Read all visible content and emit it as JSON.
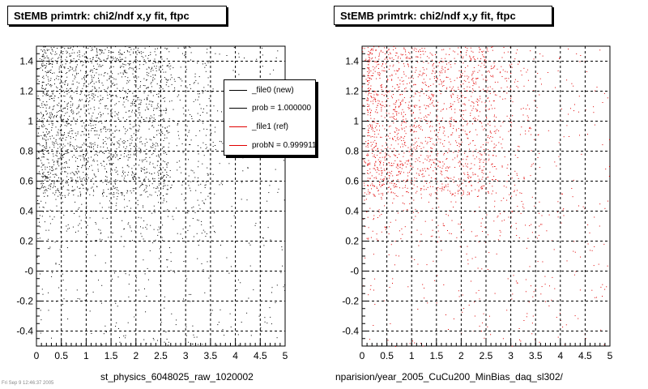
{
  "panels": [
    {
      "title": "StEMB primtrk: chi2/ndf x,y fit, ftpc",
      "file_label": "st_physics_6048025_raw_1020002",
      "marker_color": "#000000"
    },
    {
      "title": "StEMB primtrk: chi2/ndf x,y fit, ftpc",
      "file_label": "nparision/year_2005_CuCu200_MinBias_daq_sl302/",
      "marker_color": "#e00000"
    }
  ],
  "legend": {
    "entries": [
      {
        "label": "_file0 (new)",
        "color": "#000000"
      },
      {
        "label": "prob = 1.000000",
        "color": "#000000"
      },
      {
        "label": "_file1 (ref)",
        "color": "#e00000"
      },
      {
        "label": "probN = 0.999911",
        "color": "#e00000"
      }
    ]
  },
  "footer_text": "Fri Sep  9 12:46:37 2005",
  "chart_data": [
    {
      "type": "scatter",
      "title": "StEMB primtrk: chi2/ndf x,y fit, ftpc",
      "xlabel": "",
      "ylabel": "",
      "xlim": [
        0,
        5
      ],
      "ylim": [
        -0.5,
        1.5
      ],
      "x_ticks": [
        "0",
        "0.5",
        "1",
        "1.5",
        "2",
        "2.5",
        "3",
        "3.5",
        "4",
        "4.5",
        "5"
      ],
      "y_ticks": [
        "-0.4",
        "-0.2",
        "-0",
        "0.2",
        "0.4",
        "0.6",
        "0.8",
        "1",
        "1.2",
        "1.4"
      ],
      "grid": true,
      "series": [
        {
          "name": "_file0 (new)",
          "color": "#000000",
          "density": {
            "x_peak": 0.9,
            "y_range": [
              0.5,
              1.5
            ],
            "n_points": 2600
          }
        }
      ]
    },
    {
      "type": "scatter",
      "title": "StEMB primtrk: chi2/ndf x,y fit, ftpc",
      "xlabel": "",
      "ylabel": "",
      "xlim": [
        0,
        5
      ],
      "ylim": [
        -0.5,
        1.5
      ],
      "x_ticks": [
        "0",
        "0.5",
        "1",
        "1.5",
        "2",
        "2.5",
        "3",
        "3.5",
        "4",
        "4.5",
        "5"
      ],
      "y_ticks": [
        "-0.4",
        "-0.2",
        "-0",
        "0.2",
        "0.4",
        "0.6",
        "0.8",
        "1",
        "1.2",
        "1.4"
      ],
      "grid": true,
      "series": [
        {
          "name": "_file1 (ref)",
          "color": "#e00000",
          "density": {
            "x_peak": 0.9,
            "y_range": [
              0.5,
              1.5
            ],
            "n_points": 2200
          }
        }
      ]
    }
  ]
}
